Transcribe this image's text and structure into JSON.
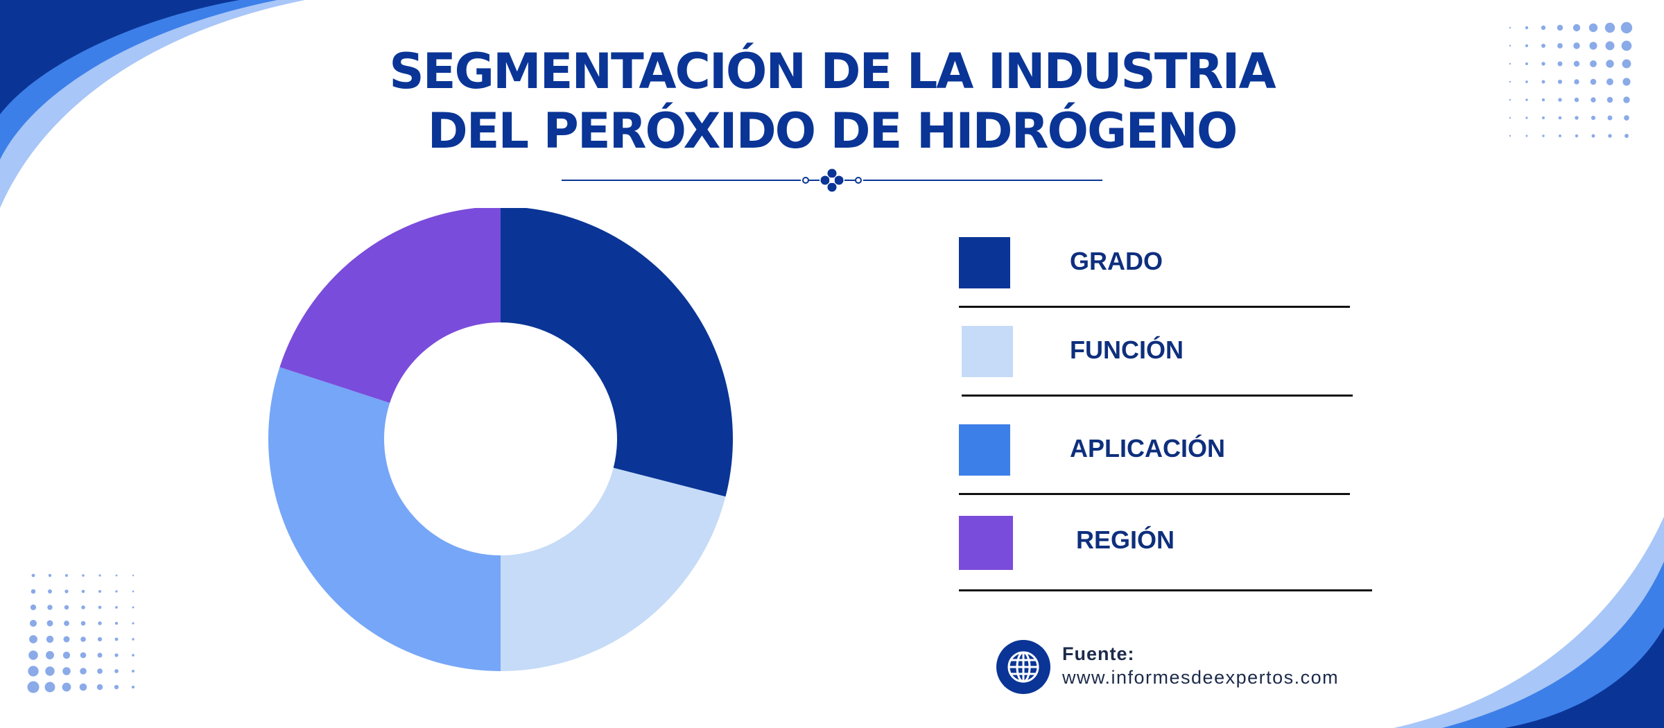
{
  "title": {
    "line1": "SEGMENTACIÓN DE LA INDUSTRIA",
    "line2": "DEL PERÓXIDO DE HIDRÓGENO"
  },
  "chart_data": {
    "type": "pie",
    "title": "SEGMENTACIÓN DE LA INDUSTRIA DEL PERÓXIDO DE HIDRÓGENO",
    "categories": [
      "GRADO",
      "FUNCIÓN",
      "APLICACIÓN",
      "REGIÓN"
    ],
    "values": [
      29,
      21,
      30,
      20
    ],
    "colors": [
      "#0a3596",
      "#c5dbf7",
      "#76a6f7",
      "#7a4cdb"
    ],
    "donut": true,
    "legend": "right"
  },
  "legend": [
    {
      "label": "GRADO",
      "color": "#0a3596"
    },
    {
      "label": "FUNCIÓN",
      "color": "#c5dbf7"
    },
    {
      "label": "APLICACIÓN",
      "color": "#3d7fe8"
    },
    {
      "label": "REGIÓN",
      "color": "#7a4cdb"
    }
  ],
  "source": {
    "label": "Fuente:",
    "url": "www.informesdeexpertos.com",
    "icon": "globe-icon"
  },
  "colors": {
    "primary": "#0a3596",
    "accent_blue": "#3d7fe8",
    "light_blue": "#a8c6f7"
  }
}
